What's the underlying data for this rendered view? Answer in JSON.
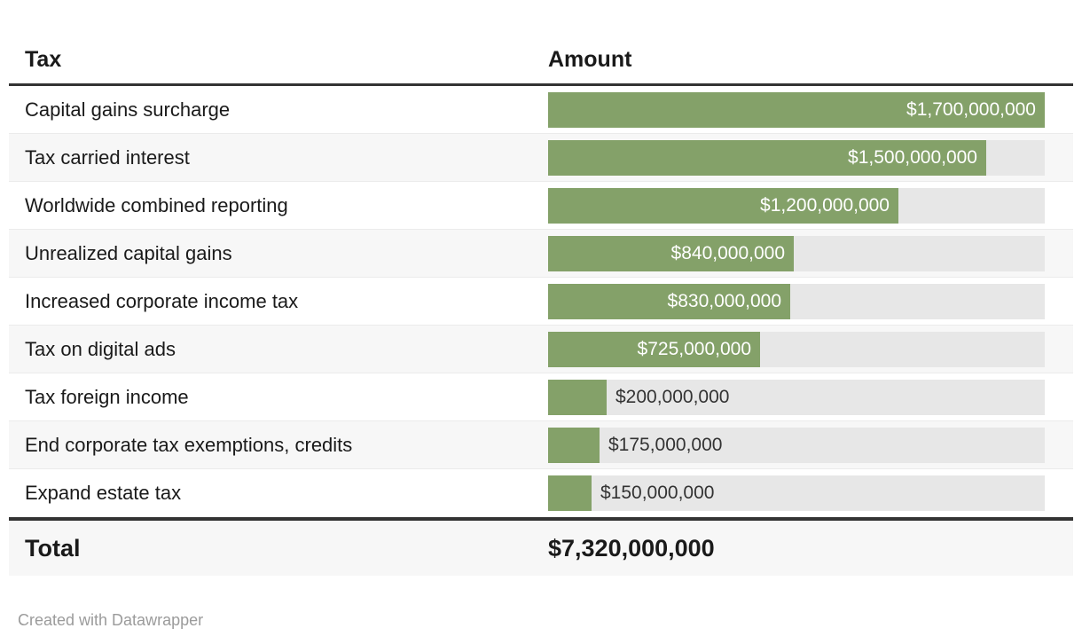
{
  "table": {
    "columns": {
      "tax": "Tax",
      "amount": "Amount"
    },
    "rows": [
      {
        "tax": "Capital gains surcharge",
        "value": 1700000000,
        "amount_label": "$1,700,000,000"
      },
      {
        "tax": "Tax carried interest",
        "value": 1500000000,
        "amount_label": "$1,500,000,000"
      },
      {
        "tax": "Worldwide combined reporting",
        "value": 1200000000,
        "amount_label": "$1,200,000,000"
      },
      {
        "tax": "Unrealized capital gains",
        "value": 840000000,
        "amount_label": "$840,000,000"
      },
      {
        "tax": "Increased corporate income tax",
        "value": 830000000,
        "amount_label": "$830,000,000"
      },
      {
        "tax": "Tax on digital ads",
        "value": 725000000,
        "amount_label": "$725,000,000"
      },
      {
        "tax": "Tax foreign income",
        "value": 200000000,
        "amount_label": "$200,000,000"
      },
      {
        "tax": "End corporate tax exemptions, credits",
        "value": 175000000,
        "amount_label": "$175,000,000"
      },
      {
        "tax": "Expand estate tax",
        "value": 150000000,
        "amount_label": "$150,000,000"
      }
    ],
    "total": {
      "label": "Total",
      "amount_label": "$7,320,000,000",
      "value": 7320000000
    }
  },
  "footer": {
    "credit": "Created with Datawrapper"
  },
  "colors": {
    "bar": "#84a169",
    "track": "#e7e7e7",
    "stripe": "#f7f7f7",
    "rule": "#333333",
    "label_inside": "#ffffff",
    "label_outside": "#333333",
    "footer_text": "#9b9b9b"
  },
  "chart_data": {
    "type": "bar",
    "orientation": "horizontal",
    "title": "",
    "columns": [
      "Tax",
      "Amount"
    ],
    "categories": [
      "Capital gains surcharge",
      "Tax carried interest",
      "Worldwide combined reporting",
      "Unrealized capital gains",
      "Increased corporate income tax",
      "Tax on digital ads",
      "Tax foreign income",
      "End corporate tax exemptions, credits",
      "Expand estate tax"
    ],
    "values": [
      1700000000,
      1500000000,
      1200000000,
      840000000,
      830000000,
      725000000,
      200000000,
      175000000,
      150000000
    ],
    "value_labels": [
      "$1,700,000,000",
      "$1,500,000,000",
      "$1,200,000,000",
      "$840,000,000",
      "$830,000,000",
      "$725,000,000",
      "$200,000,000",
      "$175,000,000",
      "$150,000,000"
    ],
    "total": {
      "label": "Total",
      "value": 7320000000,
      "value_label": "$7,320,000,000"
    },
    "xlim": [
      0,
      1700000000
    ],
    "grid": false,
    "legend": false,
    "bar_color": "#84a169",
    "credit": "Created with Datawrapper"
  }
}
